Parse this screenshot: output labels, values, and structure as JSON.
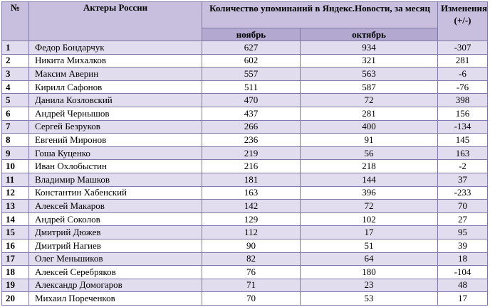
{
  "headers": {
    "num": "№",
    "actors": "Актеры России",
    "mentions": "Количество упоминаний в Яндекс.Новости, за месяц",
    "change": "Изменения (+/-)",
    "november": "ноябрь",
    "october": "октябрь"
  },
  "rows": [
    {
      "num": "1",
      "name": "Федор Бондарчук",
      "nov": "627",
      "oct": "934",
      "change": "-307"
    },
    {
      "num": "2",
      "name": "Никита Михалков",
      "nov": "602",
      "oct": "321",
      "change": "281"
    },
    {
      "num": "3",
      "name": "Максим Аверин",
      "nov": "557",
      "oct": "563",
      "change": "-6"
    },
    {
      "num": "4",
      "name": "Кирилл Сафонов",
      "nov": "511",
      "oct": "587",
      "change": "-76"
    },
    {
      "num": "5",
      "name": "Данила Козловский",
      "nov": "470",
      "oct": "72",
      "change": "398"
    },
    {
      "num": "6",
      "name": "Андрей Чернышов",
      "nov": "437",
      "oct": "281",
      "change": "156"
    },
    {
      "num": "7",
      "name": "Сергей Безруков",
      "nov": "266",
      "oct": "400",
      "change": "-134"
    },
    {
      "num": "8",
      "name": "Евгений Миронов",
      "nov": "236",
      "oct": "91",
      "change": "145"
    },
    {
      "num": "9",
      "name": "Гоша Куценко",
      "nov": "219",
      "oct": "56",
      "change": "163"
    },
    {
      "num": "10",
      "name": "Иван Охлобыстин",
      "nov": "216",
      "oct": "218",
      "change": "-2"
    },
    {
      "num": "11",
      "name": "Владимир Машков",
      "nov": "181",
      "oct": "144",
      "change": "37"
    },
    {
      "num": "12",
      "name": "Константин Хабенский",
      "nov": "163",
      "oct": "396",
      "change": "-233"
    },
    {
      "num": "13",
      "name": "Алексей Макаров",
      "nov": "142",
      "oct": "72",
      "change": "70"
    },
    {
      "num": "14",
      "name": "Андрей Соколов",
      "nov": "129",
      "oct": "102",
      "change": "27"
    },
    {
      "num": "15",
      "name": "Дмитрий Дюжев",
      "nov": "112",
      "oct": "17",
      "change": "95"
    },
    {
      "num": "16",
      "name": "Дмитрий Нагиев",
      "nov": "90",
      "oct": "51",
      "change": "39"
    },
    {
      "num": "17",
      "name": "Олег Меньшиков",
      "nov": "82",
      "oct": "64",
      "change": "18"
    },
    {
      "num": "18",
      "name": "Алексей Серебряков",
      "nov": "76",
      "oct": "180",
      "change": "-104"
    },
    {
      "num": "19",
      "name": "Александр Домогаров",
      "nov": "71",
      "oct": "23",
      "change": "48"
    },
    {
      "num": "20",
      "name": "Михаил Пореченков",
      "nov": "70",
      "oct": "53",
      "change": "17"
    }
  ]
}
